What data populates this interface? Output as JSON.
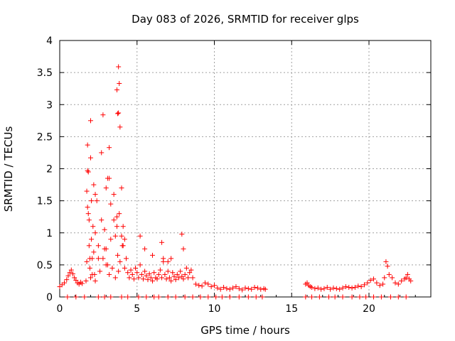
{
  "chart_data": {
    "type": "scatter",
    "title": "Day 083 of 2026, SRMTID for receiver glps",
    "xlabel": "GPS time / hours",
    "ylabel": "SRMTID / TECUs",
    "xlim": [
      0,
      24
    ],
    "ylim": [
      0,
      4
    ],
    "xticks": [
      0,
      5,
      10,
      15,
      20
    ],
    "yticks": [
      0,
      0.5,
      1,
      1.5,
      2,
      2.5,
      3,
      3.5,
      4
    ],
    "xtick_labels": [
      "0",
      "5",
      "10",
      "15",
      "20"
    ],
    "ytick_labels": [
      "0",
      "0.5",
      "1",
      "1.5",
      "2",
      "2.5",
      "3",
      "3.5",
      "4"
    ],
    "grid": true,
    "marker": "+",
    "color": "#ff0000",
    "series": [
      {
        "name": "glps",
        "x": [
          0.0,
          0.15,
          0.3,
          0.45,
          0.55,
          0.65,
          0.75,
          0.85,
          0.95,
          1.05,
          1.15,
          1.25,
          1.35,
          1.45,
          1.7,
          1.75,
          1.8,
          1.85,
          1.9,
          1.95,
          2.0,
          2.05,
          2.1,
          2.15,
          2.2,
          2.25,
          2.3,
          2.4,
          2.5,
          2.6,
          2.7,
          2.8,
          2.9,
          3.0,
          3.1,
          3.2,
          3.3,
          3.4,
          3.5,
          3.6,
          3.7,
          3.75,
          3.8,
          3.85,
          3.9,
          4.0,
          4.1,
          4.2,
          4.3,
          4.4,
          1.75,
          1.8,
          1.85,
          1.9,
          1.95,
          2.0,
          2.05,
          2.1,
          2.2,
          2.3,
          2.5,
          2.8,
          2.9,
          3.0,
          3.1,
          3.2,
          3.3,
          3.6,
          3.7,
          3.75,
          3.8,
          3.85,
          3.9,
          4.0,
          4.1,
          1.8,
          2.0,
          2.3,
          2.7,
          3.0,
          3.2,
          3.5,
          3.7,
          3.8,
          4.05,
          4.2,
          4.5,
          4.6,
          4.7,
          4.8,
          4.9,
          5.0,
          5.1,
          5.2,
          5.3,
          5.4,
          5.5,
          5.6,
          5.7,
          5.8,
          5.9,
          6.0,
          6.1,
          6.2,
          6.3,
          6.4,
          6.5,
          6.6,
          6.7,
          6.8,
          6.9,
          7.0,
          7.1,
          7.2,
          7.3,
          7.4,
          7.5,
          7.6,
          7.7,
          7.8,
          7.9,
          8.0,
          8.1,
          8.2,
          8.3,
          8.4,
          8.5,
          8.6,
          5.2,
          5.5,
          6.0,
          6.6,
          6.7,
          7.0,
          7.2,
          7.9,
          8.0,
          8.8,
          9.0,
          9.2,
          9.4,
          9.6,
          9.8,
          10.0,
          10.2,
          10.4,
          10.6,
          10.8,
          11.0,
          11.2,
          11.4,
          11.6,
          11.8,
          12.0,
          12.2,
          12.4,
          12.6,
          12.8,
          13.0,
          13.2,
          13.3,
          15.9,
          16.0,
          16.1,
          16.2,
          16.3,
          16.5,
          16.7,
          16.9,
          17.1,
          17.3,
          17.5,
          17.7,
          17.9,
          18.1,
          18.3,
          18.5,
          18.7,
          18.9,
          19.1,
          19.3,
          19.5,
          19.7,
          19.9,
          20.1,
          20.3,
          20.5,
          20.7,
          20.9,
          21.0,
          21.1,
          21.2,
          21.3,
          21.5,
          21.7,
          21.9,
          22.1,
          22.3,
          22.4,
          22.5,
          22.6,
          22.7,
          0.5,
          1.05,
          1.6,
          2.5,
          2.9,
          3.3,
          4.0,
          4.4,
          5.1,
          5.6,
          6.1,
          6.4,
          7.0,
          7.5,
          8.1,
          8.6,
          9.1,
          9.6,
          10.1,
          10.5,
          11.0,
          11.6,
          12.2,
          12.7,
          13.1,
          15.9,
          16.3,
          16.8,
          17.4,
          17.8,
          18.3,
          18.9,
          19.4,
          19.8,
          20.3,
          20.8,
          21.4,
          21.9,
          22.4
        ],
        "y": [
          0.16,
          0.19,
          0.22,
          0.27,
          0.33,
          0.38,
          0.42,
          0.36,
          0.3,
          0.26,
          0.22,
          0.2,
          0.23,
          0.21,
          0.25,
          0.55,
          1.4,
          1.95,
          1.2,
          0.45,
          0.3,
          0.9,
          0.6,
          1.1,
          0.7,
          0.35,
          0.25,
          1.5,
          0.8,
          0.4,
          1.2,
          0.6,
          0.75,
          0.5,
          1.85,
          0.35,
          0.9,
          0.45,
          1.6,
          0.3,
          1.1,
          0.65,
          0.4,
          1.3,
          0.55,
          0.95,
          0.8,
          0.45,
          0.6,
          0.38,
          1.65,
          1.97,
          1.3,
          0.8,
          0.6,
          2.75,
          1.5,
          0.35,
          1.75,
          1.0,
          0.6,
          2.84,
          1.05,
          1.7,
          0.5,
          2.33,
          1.45,
          0.95,
          1.25,
          2.86,
          3.59,
          3.33,
          2.65,
          1.7,
          1.1,
          2.37,
          2.17,
          1.6,
          2.25,
          0.75,
          1.85,
          1.2,
          3.23,
          2.87,
          0.8,
          0.9,
          0.3,
          0.42,
          0.35,
          0.28,
          0.45,
          0.38,
          0.3,
          0.5,
          0.35,
          0.28,
          0.4,
          0.33,
          0.27,
          0.36,
          0.3,
          0.25,
          0.38,
          0.3,
          0.28,
          0.35,
          0.42,
          0.3,
          0.55,
          0.35,
          0.28,
          0.4,
          0.3,
          0.25,
          0.38,
          0.32,
          0.27,
          0.35,
          0.3,
          0.4,
          0.32,
          0.28,
          0.35,
          0.45,
          0.3,
          0.38,
          0.42,
          0.3,
          0.95,
          0.75,
          0.65,
          0.85,
          0.6,
          0.55,
          0.6,
          0.98,
          0.75,
          0.2,
          0.18,
          0.17,
          0.22,
          0.2,
          0.16,
          0.18,
          0.14,
          0.12,
          0.15,
          0.13,
          0.12,
          0.14,
          0.16,
          0.13,
          0.11,
          0.14,
          0.13,
          0.12,
          0.15,
          0.14,
          0.12,
          0.13,
          0.12,
          0.2,
          0.22,
          0.18,
          0.16,
          0.15,
          0.13,
          0.14,
          0.12,
          0.13,
          0.15,
          0.12,
          0.14,
          0.13,
          0.12,
          0.14,
          0.16,
          0.15,
          0.14,
          0.15,
          0.17,
          0.16,
          0.19,
          0.22,
          0.26,
          0.28,
          0.22,
          0.18,
          0.2,
          0.3,
          0.55,
          0.48,
          0.35,
          0.3,
          0.22,
          0.2,
          0.25,
          0.28,
          0.3,
          0.35,
          0.28,
          0.25,
          0.0,
          0.0,
          0.0,
          0.0,
          0.0,
          0.0,
          0.0,
          0.0,
          0.0,
          0.0,
          0.0,
          0.0,
          0.0,
          0.0,
          0.0,
          0.0,
          0.0,
          0.0,
          0.0,
          0.0,
          0.0,
          0.0,
          0.0,
          0.0,
          0.0,
          0.0,
          0.0,
          0.0,
          0.0,
          0.0,
          0.0,
          0.0,
          0.0,
          0.0,
          0.0,
          0.0,
          0.0,
          0.0,
          0.0
        ]
      }
    ]
  }
}
